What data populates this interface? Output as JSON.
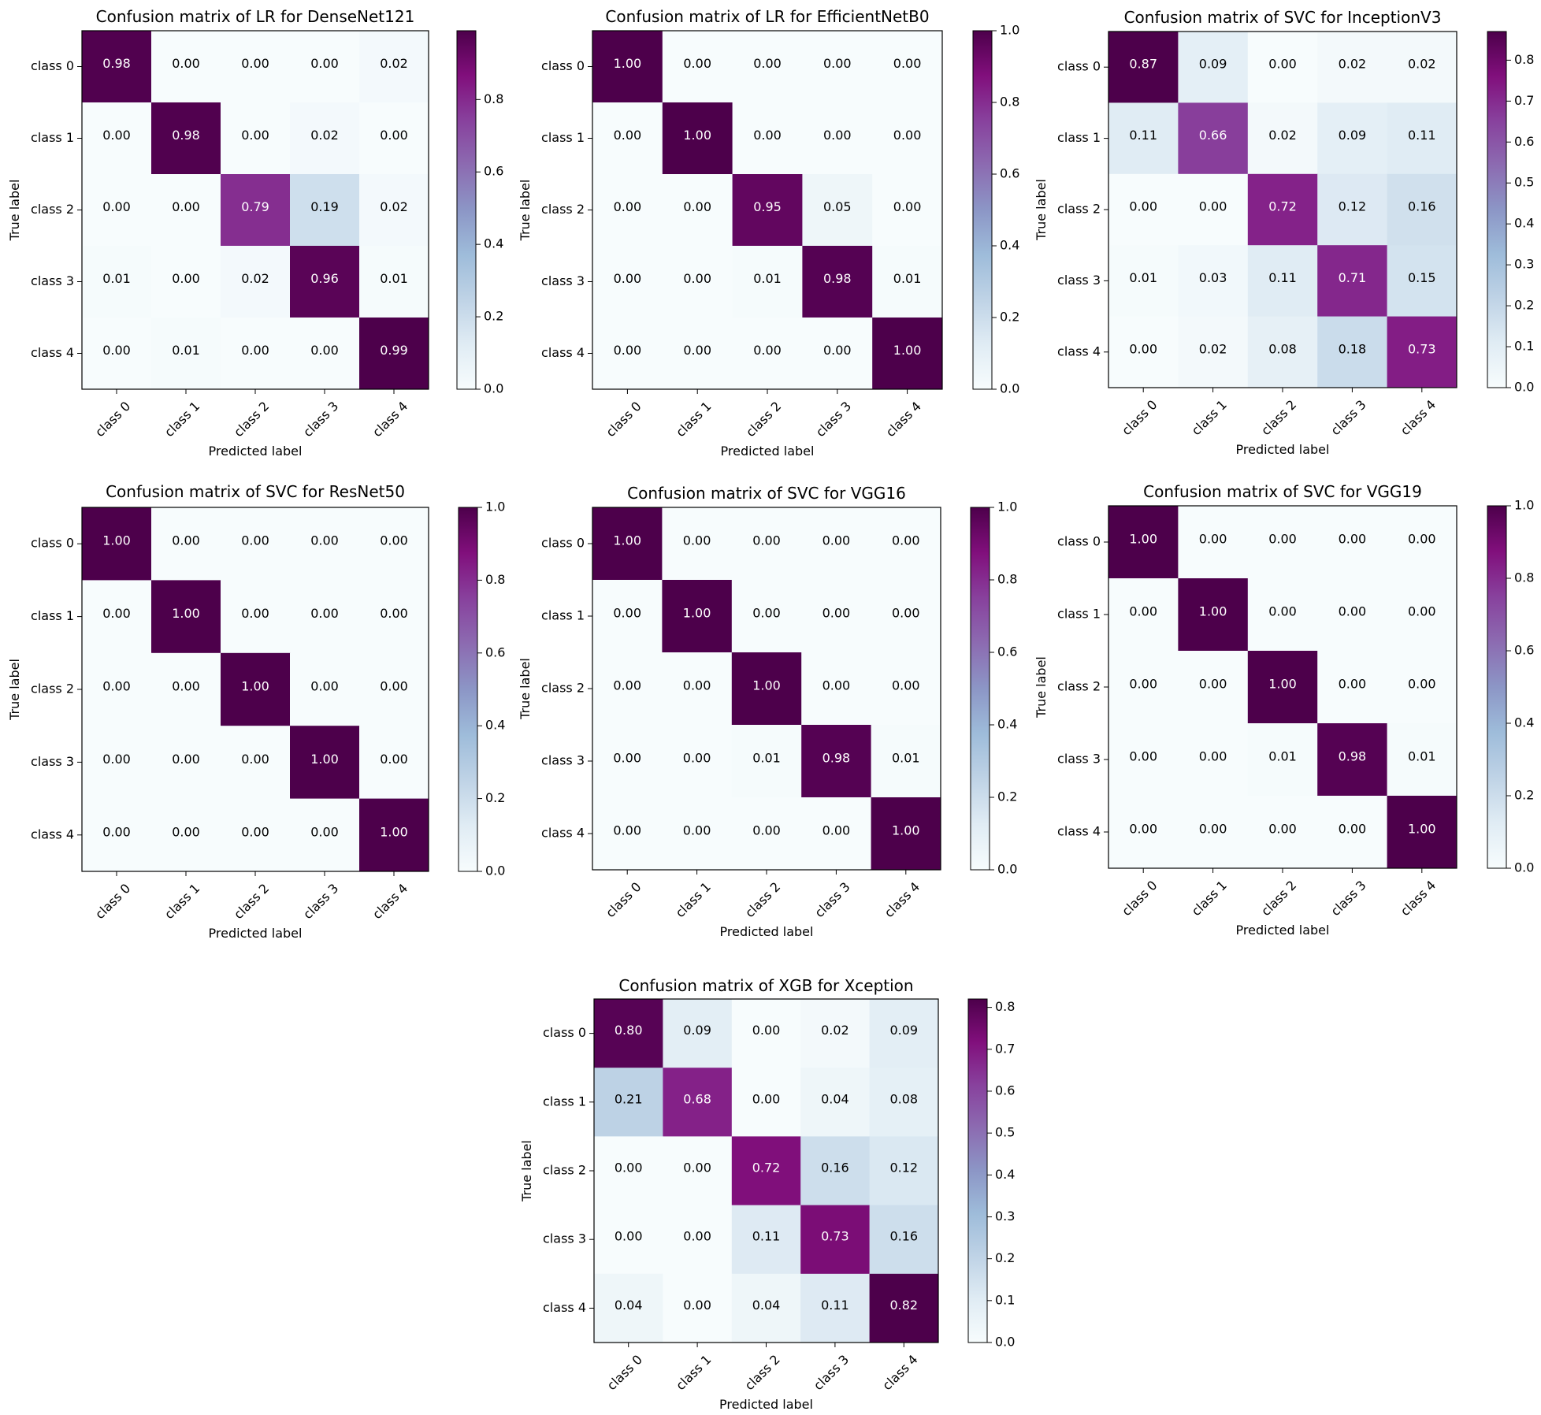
{
  "chart_data": [
    {
      "type": "heatmap",
      "title": "Confusion matrix of LR for DenseNet121",
      "xlabel": "Predicted label",
      "ylabel": "True label",
      "x_categories": [
        "class 0",
        "class 1",
        "class 2",
        "class 3",
        "class 4"
      ],
      "y_categories": [
        "class 0",
        "class 1",
        "class 2",
        "class 3",
        "class 4"
      ],
      "values": [
        [
          0.98,
          0.0,
          0.0,
          0.0,
          0.02
        ],
        [
          0.0,
          0.98,
          0.0,
          0.02,
          0.0
        ],
        [
          0.0,
          0.0,
          0.79,
          0.19,
          0.02
        ],
        [
          0.01,
          0.0,
          0.02,
          0.96,
          0.01
        ],
        [
          0.0,
          0.01,
          0.0,
          0.0,
          0.99
        ]
      ],
      "colorbar": {
        "min": 0.0,
        "max": 0.99,
        "ticks": [
          0.0,
          0.2,
          0.4,
          0.6,
          0.8
        ]
      },
      "colormap": "BuPu"
    },
    {
      "type": "heatmap",
      "title": "Confusion matrix of LR for EfficientNetB0",
      "xlabel": "Predicted label",
      "ylabel": "True label",
      "x_categories": [
        "class 0",
        "class 1",
        "class 2",
        "class 3",
        "class 4"
      ],
      "y_categories": [
        "class 0",
        "class 1",
        "class 2",
        "class 3",
        "class 4"
      ],
      "values": [
        [
          1.0,
          0.0,
          0.0,
          0.0,
          0.0
        ],
        [
          0.0,
          1.0,
          0.0,
          0.0,
          0.0
        ],
        [
          0.0,
          0.0,
          0.95,
          0.05,
          0.0
        ],
        [
          0.0,
          0.0,
          0.01,
          0.98,
          0.01
        ],
        [
          0.0,
          0.0,
          0.0,
          0.0,
          1.0
        ]
      ],
      "colorbar": {
        "min": 0.0,
        "max": 1.0,
        "ticks": [
          0.0,
          0.2,
          0.4,
          0.6,
          0.8,
          1.0
        ]
      },
      "colormap": "BuPu"
    },
    {
      "type": "heatmap",
      "title": "Confusion matrix of SVC for InceptionV3",
      "xlabel": "Predicted label",
      "ylabel": "True label",
      "x_categories": [
        "class 0",
        "class 1",
        "class 2",
        "class 3",
        "class 4"
      ],
      "y_categories": [
        "class 0",
        "class 1",
        "class 2",
        "class 3",
        "class 4"
      ],
      "values": [
        [
          0.87,
          0.09,
          0.0,
          0.02,
          0.02
        ],
        [
          0.11,
          0.66,
          0.02,
          0.09,
          0.11
        ],
        [
          0.0,
          0.0,
          0.72,
          0.12,
          0.16
        ],
        [
          0.01,
          0.03,
          0.11,
          0.71,
          0.15
        ],
        [
          0.0,
          0.02,
          0.08,
          0.18,
          0.73
        ]
      ],
      "colorbar": {
        "min": 0.0,
        "max": 0.87,
        "ticks": [
          0.0,
          0.1,
          0.2,
          0.3,
          0.4,
          0.5,
          0.6,
          0.7,
          0.8
        ]
      },
      "colormap": "BuPu"
    },
    {
      "type": "heatmap",
      "title": "Confusion matrix of SVC for ResNet50",
      "xlabel": "Predicted label",
      "ylabel": "True label",
      "x_categories": [
        "class 0",
        "class 1",
        "class 2",
        "class 3",
        "class 4"
      ],
      "y_categories": [
        "class 0",
        "class 1",
        "class 2",
        "class 3",
        "class 4"
      ],
      "values": [
        [
          1.0,
          0.0,
          0.0,
          0.0,
          0.0
        ],
        [
          0.0,
          1.0,
          0.0,
          0.0,
          0.0
        ],
        [
          0.0,
          0.0,
          1.0,
          0.0,
          0.0
        ],
        [
          0.0,
          0.0,
          0.0,
          1.0,
          0.0
        ],
        [
          0.0,
          0.0,
          0.0,
          0.0,
          1.0
        ]
      ],
      "colorbar": {
        "min": 0.0,
        "max": 1.0,
        "ticks": [
          0.0,
          0.2,
          0.4,
          0.6,
          0.8,
          1.0
        ]
      },
      "colormap": "BuPu"
    },
    {
      "type": "heatmap",
      "title": "Confusion matrix of SVC for VGG16",
      "xlabel": "Predicted label",
      "ylabel": "True label",
      "x_categories": [
        "class 0",
        "class 1",
        "class 2",
        "class 3",
        "class 4"
      ],
      "y_categories": [
        "class 0",
        "class 1",
        "class 2",
        "class 3",
        "class 4"
      ],
      "values": [
        [
          1.0,
          0.0,
          0.0,
          0.0,
          0.0
        ],
        [
          0.0,
          1.0,
          0.0,
          0.0,
          0.0
        ],
        [
          0.0,
          0.0,
          1.0,
          0.0,
          0.0
        ],
        [
          0.0,
          0.0,
          0.01,
          0.98,
          0.01
        ],
        [
          0.0,
          0.0,
          0.0,
          0.0,
          1.0
        ]
      ],
      "colorbar": {
        "min": 0.0,
        "max": 1.0,
        "ticks": [
          0.0,
          0.2,
          0.4,
          0.6,
          0.8,
          1.0
        ]
      },
      "colormap": "BuPu"
    },
    {
      "type": "heatmap",
      "title": "Confusion matrix of SVC for VGG19",
      "xlabel": "Predicted label",
      "ylabel": "True label",
      "x_categories": [
        "class 0",
        "class 1",
        "class 2",
        "class 3",
        "class 4"
      ],
      "y_categories": [
        "class 0",
        "class 1",
        "class 2",
        "class 3",
        "class 4"
      ],
      "values": [
        [
          1.0,
          0.0,
          0.0,
          0.0,
          0.0
        ],
        [
          0.0,
          1.0,
          0.0,
          0.0,
          0.0
        ],
        [
          0.0,
          0.0,
          1.0,
          0.0,
          0.0
        ],
        [
          0.0,
          0.0,
          0.01,
          0.98,
          0.01
        ],
        [
          0.0,
          0.0,
          0.0,
          0.0,
          1.0
        ]
      ],
      "colorbar": {
        "min": 0.0,
        "max": 1.0,
        "ticks": [
          0.0,
          0.2,
          0.4,
          0.6,
          0.8,
          1.0
        ]
      },
      "colormap": "BuPu"
    },
    {
      "type": "heatmap",
      "title": "Confusion matrix of XGB for Xception",
      "xlabel": "Predicted label",
      "ylabel": "True label",
      "x_categories": [
        "class 0",
        "class 1",
        "class 2",
        "class 3",
        "class 4"
      ],
      "y_categories": [
        "class 0",
        "class 1",
        "class 2",
        "class 3",
        "class 4"
      ],
      "values": [
        [
          0.8,
          0.09,
          0.0,
          0.02,
          0.09
        ],
        [
          0.21,
          0.68,
          0.0,
          0.04,
          0.08
        ],
        [
          0.0,
          0.0,
          0.72,
          0.16,
          0.12
        ],
        [
          0.0,
          0.0,
          0.11,
          0.73,
          0.16
        ],
        [
          0.04,
          0.0,
          0.04,
          0.11,
          0.82
        ]
      ],
      "colorbar": {
        "min": 0.0,
        "max": 0.82,
        "ticks": [
          0.0,
          0.1,
          0.2,
          0.3,
          0.4,
          0.5,
          0.6,
          0.7,
          0.8
        ]
      },
      "colormap": "BuPu"
    }
  ]
}
